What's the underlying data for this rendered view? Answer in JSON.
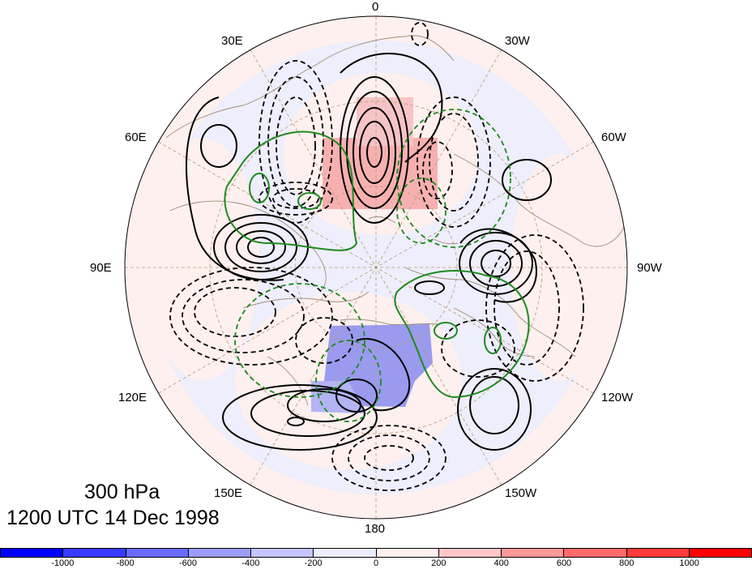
{
  "map": {
    "projection": "north-polar-stereographic",
    "longitude_labels": [
      {
        "id": "0",
        "text": "0"
      },
      {
        "id": "30W",
        "text": "30W"
      },
      {
        "id": "60W",
        "text": "60W"
      },
      {
        "id": "90W",
        "text": "90W"
      },
      {
        "id": "120W",
        "text": "120W"
      },
      {
        "id": "150W",
        "text": "150W"
      },
      {
        "id": "180",
        "text": "180"
      },
      {
        "id": "150E",
        "text": "150E"
      },
      {
        "id": "120E",
        "text": "120E"
      },
      {
        "id": "90E",
        "text": "90E"
      },
      {
        "id": "60E",
        "text": "60E"
      },
      {
        "id": "30E",
        "text": "30E"
      }
    ],
    "positive_anomaly_region": "Arctic / Svalbard sector",
    "negative_anomaly_region": "Bering Strait / East Siberia sector",
    "contour_styles": {
      "positive": "solid black",
      "negative": "dashed black",
      "green": "green solid and dashed"
    },
    "colors": {
      "coastline": "#a08c7a",
      "graticule": "#b89a78",
      "black_contour": "#000000",
      "green_contour": "#1f8a1f"
    }
  },
  "caption": {
    "level": "300 hPa",
    "time": "1200 UTC 14 Dec 1998"
  },
  "colorbar": {
    "colors": [
      "#0000ff",
      "#3a3aff",
      "#6a6aff",
      "#9c9cff",
      "#c5c5ff",
      "#ecedff",
      "#fff0ee",
      "#ffc6c6",
      "#ff9898",
      "#ff6a6a",
      "#ff3a3a",
      "#ff0000"
    ],
    "labels": [
      "-1000",
      "-800",
      "-600",
      "-400",
      "-200",
      "0",
      "200",
      "400",
      "600",
      "800",
      "1000"
    ]
  }
}
